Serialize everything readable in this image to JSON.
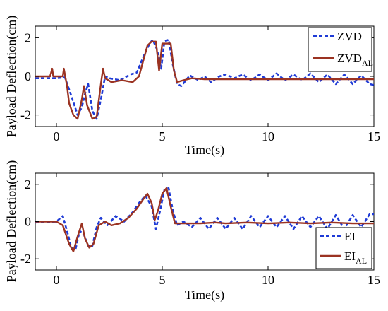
{
  "colors": {
    "series_blue": "#1f3bd6",
    "series_red": "#9b3322"
  },
  "chart_data": [
    {
      "type": "line",
      "xlabel": "Time(s)",
      "ylabel": "Payload Deflection(cm)",
      "xlim": [
        -1,
        15
      ],
      "ylim": [
        -2.6,
        2.6
      ],
      "xticks": [
        0,
        5,
        10,
        15
      ],
      "yticks": [
        -2,
        0,
        2
      ],
      "legend_position": "top-right",
      "series": [
        {
          "name": "ZVD",
          "style": "dashed",
          "color": "#1f3bd6",
          "x": [
            -1,
            0,
            0.4,
            0.7,
            1.0,
            1.2,
            1.35,
            1.5,
            1.7,
            1.9,
            2.1,
            2.3,
            2.5,
            3.0,
            3.5,
            3.8,
            4.1,
            4.4,
            4.55,
            4.75,
            4.95,
            5.1,
            5.3,
            5.5,
            5.7,
            5.9,
            6.3,
            6.7,
            7.0,
            7.3,
            7.7,
            8.0,
            8.4,
            8.8,
            9.2,
            9.6,
            10.0,
            10.4,
            10.8,
            11.2,
            11.6,
            12.0,
            12.4,
            12.8,
            13.2,
            13.6,
            14.0,
            14.4,
            14.8,
            15
          ],
          "y": [
            -0.1,
            -0.1,
            -0.05,
            -1.0,
            -2.0,
            -1.6,
            -0.9,
            -0.4,
            -1.8,
            -2.2,
            -1.2,
            0.0,
            -0.1,
            -0.2,
            0.1,
            0.2,
            1.0,
            1.7,
            1.9,
            1.4,
            0.4,
            1.8,
            1.9,
            0.6,
            -0.4,
            -0.5,
            0.05,
            -0.2,
            0.0,
            -0.3,
            0.0,
            0.1,
            -0.1,
            0.1,
            -0.2,
            0.1,
            -0.2,
            0.15,
            -0.2,
            0.1,
            -0.2,
            0.15,
            -0.3,
            0.1,
            -0.4,
            0.1,
            -0.4,
            0.05,
            -0.4,
            -0.45
          ]
        },
        {
          "name": "ZVD_AL",
          "style": "solid",
          "color": "#9b3322",
          "x": [
            -1,
            -0.3,
            -0.2,
            -0.15,
            0.3,
            0.35,
            0.5,
            0.6,
            0.8,
            1.0,
            1.2,
            1.3,
            1.45,
            1.7,
            1.9,
            2.1,
            2.2,
            2.3,
            2.6,
            3.1,
            3.6,
            3.9,
            4.1,
            4.3,
            4.5,
            4.7,
            4.85,
            5.0,
            5.2,
            5.4,
            5.55,
            5.7,
            6.0,
            6.4,
            7,
            8,
            9,
            10,
            11,
            12,
            13,
            14,
            15
          ],
          "y": [
            0.0,
            0.0,
            0.4,
            0.0,
            0.0,
            0.4,
            -0.5,
            -1.4,
            -2.0,
            -2.2,
            -1.2,
            -0.5,
            -1.5,
            -2.2,
            -2.1,
            -0.4,
            0.4,
            -0.1,
            -0.3,
            -0.2,
            -0.3,
            0.0,
            0.8,
            1.6,
            1.8,
            1.8,
            0.3,
            1.7,
            1.7,
            1.7,
            0.3,
            -0.3,
            -0.2,
            -0.1,
            -0.15,
            -0.15,
            -0.15,
            -0.15,
            -0.15,
            -0.15,
            -0.15,
            -0.15,
            -0.15
          ]
        }
      ]
    },
    {
      "type": "line",
      "xlabel": "Time(s)",
      "ylabel": "Payload Deflection(cm)",
      "xlim": [
        -1,
        15
      ],
      "ylim": [
        -2.6,
        2.6
      ],
      "xticks": [
        0,
        5,
        10,
        15
      ],
      "yticks": [
        -2,
        0,
        2
      ],
      "legend_position": "bottom-right",
      "series": [
        {
          "name": "EI",
          "style": "dashed",
          "color": "#1f3bd6",
          "x": [
            -1,
            0,
            0.3,
            0.5,
            0.7,
            0.9,
            1.1,
            1.3,
            1.5,
            1.7,
            1.9,
            2.1,
            2.4,
            2.8,
            3.2,
            3.6,
            3.9,
            4.2,
            4.5,
            4.7,
            4.9,
            5.1,
            5.3,
            5.5,
            5.7,
            6.0,
            6.4,
            6.8,
            7.2,
            7.6,
            8.0,
            8.4,
            8.8,
            9.2,
            9.6,
            10.0,
            10.4,
            10.8,
            11.2,
            11.6,
            12.0,
            12.4,
            12.8,
            13.2,
            13.6,
            14.0,
            14.4,
            14.8,
            15
          ],
          "y": [
            -0.05,
            0.0,
            0.3,
            -0.5,
            -1.4,
            -1.5,
            -0.5,
            -0.7,
            -1.3,
            -1.3,
            -0.3,
            0.2,
            -0.2,
            0.3,
            0.0,
            0.5,
            1.0,
            1.4,
            0.8,
            -0.4,
            0.6,
            1.7,
            1.8,
            0.6,
            -0.2,
            0.0,
            -0.3,
            0.2,
            -0.4,
            0.2,
            -0.4,
            0.2,
            -0.4,
            0.3,
            -0.3,
            0.3,
            -0.3,
            0.3,
            -0.4,
            0.3,
            -0.3,
            0.3,
            -0.4,
            0.35,
            -0.4,
            0.35,
            -0.3,
            0.4,
            0.4
          ]
        },
        {
          "name": "EI_AL",
          "style": "solid",
          "color": "#9b3322",
          "x": [
            -1,
            0,
            0.3,
            0.6,
            0.8,
            1.0,
            1.2,
            1.35,
            1.55,
            1.75,
            2.0,
            2.3,
            2.6,
            3.0,
            3.4,
            3.8,
            4.1,
            4.3,
            4.5,
            4.65,
            4.8,
            5.0,
            5.2,
            5.4,
            5.6,
            5.9,
            6.3,
            6.8,
            7.5,
            8,
            9,
            10,
            11,
            12,
            13,
            14,
            15
          ],
          "y": [
            0.0,
            0.0,
            -0.2,
            -1.2,
            -1.6,
            -0.8,
            -0.1,
            -0.9,
            -1.4,
            -1.2,
            -0.2,
            0.0,
            -0.2,
            -0.1,
            0.2,
            0.7,
            1.2,
            1.5,
            1.0,
            0.1,
            0.6,
            1.5,
            1.8,
            0.8,
            -0.1,
            -0.1,
            -0.1,
            -0.1,
            -0.05,
            -0.1,
            -0.05,
            -0.1,
            -0.05,
            -0.1,
            -0.05,
            -0.1,
            -0.1
          ]
        }
      ]
    }
  ]
}
